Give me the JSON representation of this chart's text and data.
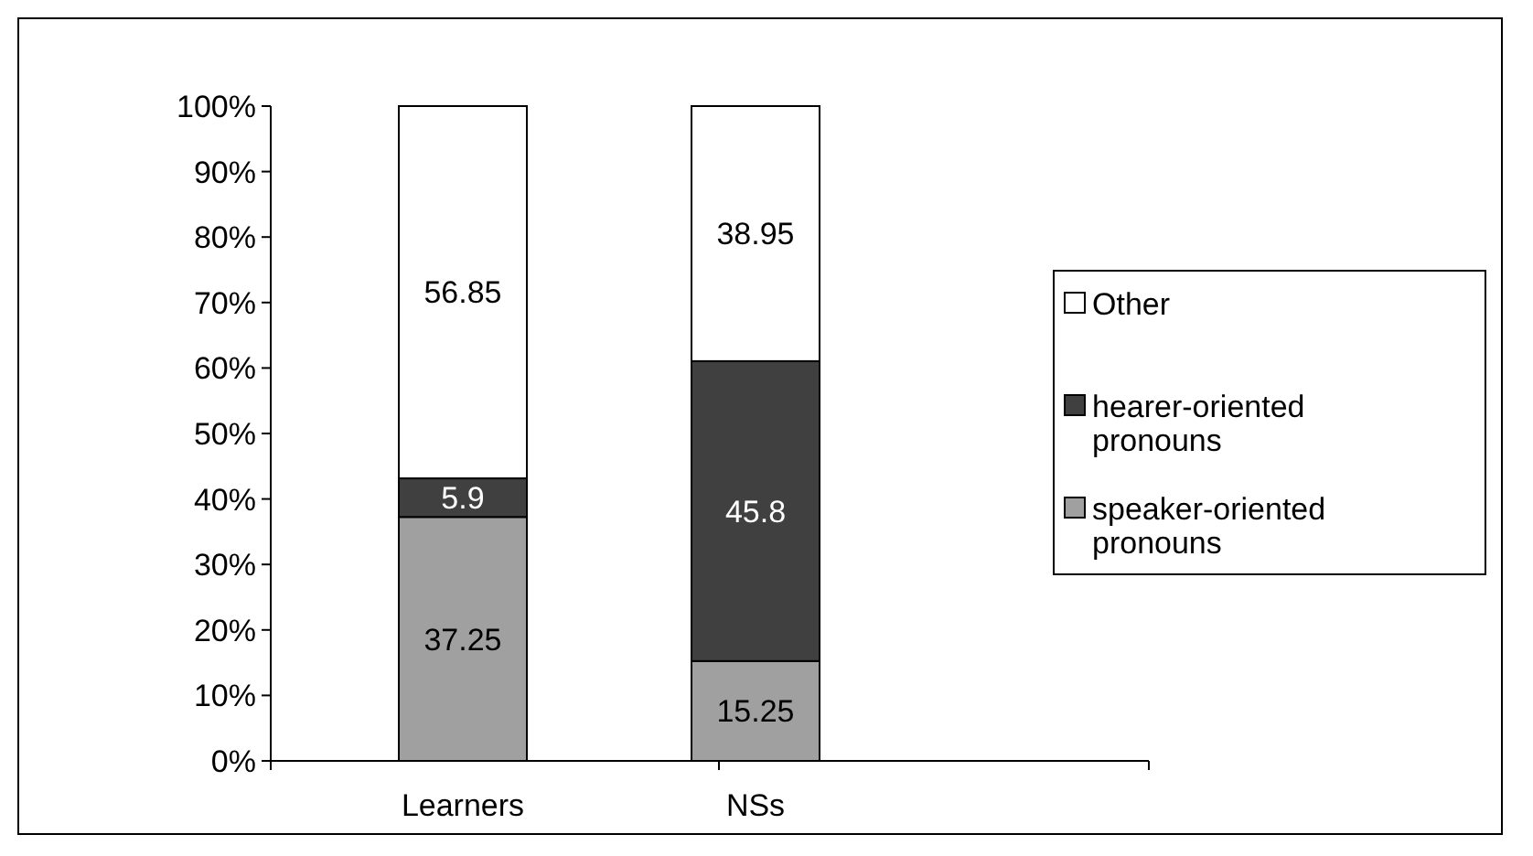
{
  "chart_data": {
    "type": "bar",
    "stacked": true,
    "categories": [
      "Learners",
      "NSs"
    ],
    "series": [
      {
        "name": "speaker-oriented pronouns",
        "color": "#a0a0a0",
        "values": [
          37.25,
          15.25
        ]
      },
      {
        "name": "hearer-oriented pronouns",
        "color": "#404040",
        "values": [
          5.9,
          45.8
        ]
      },
      {
        "name": "Other",
        "color": "#ffffff",
        "values": [
          56.85,
          38.95
        ]
      }
    ],
    "ylim": [
      0,
      100
    ],
    "yticks": [
      {
        "value": 0,
        "label": "0%"
      },
      {
        "value": 10,
        "label": "10%"
      },
      {
        "value": 20,
        "label": "20%"
      },
      {
        "value": 30,
        "label": "30%"
      },
      {
        "value": 40,
        "label": "40%"
      },
      {
        "value": 50,
        "label": "50%"
      },
      {
        "value": 60,
        "label": "60%"
      },
      {
        "value": 70,
        "label": "70%"
      },
      {
        "value": 80,
        "label": "80%"
      },
      {
        "value": 90,
        "label": "90%"
      },
      {
        "value": 100,
        "label": "100%"
      }
    ],
    "data_labels": true,
    "legend": "right",
    "grid": false
  }
}
